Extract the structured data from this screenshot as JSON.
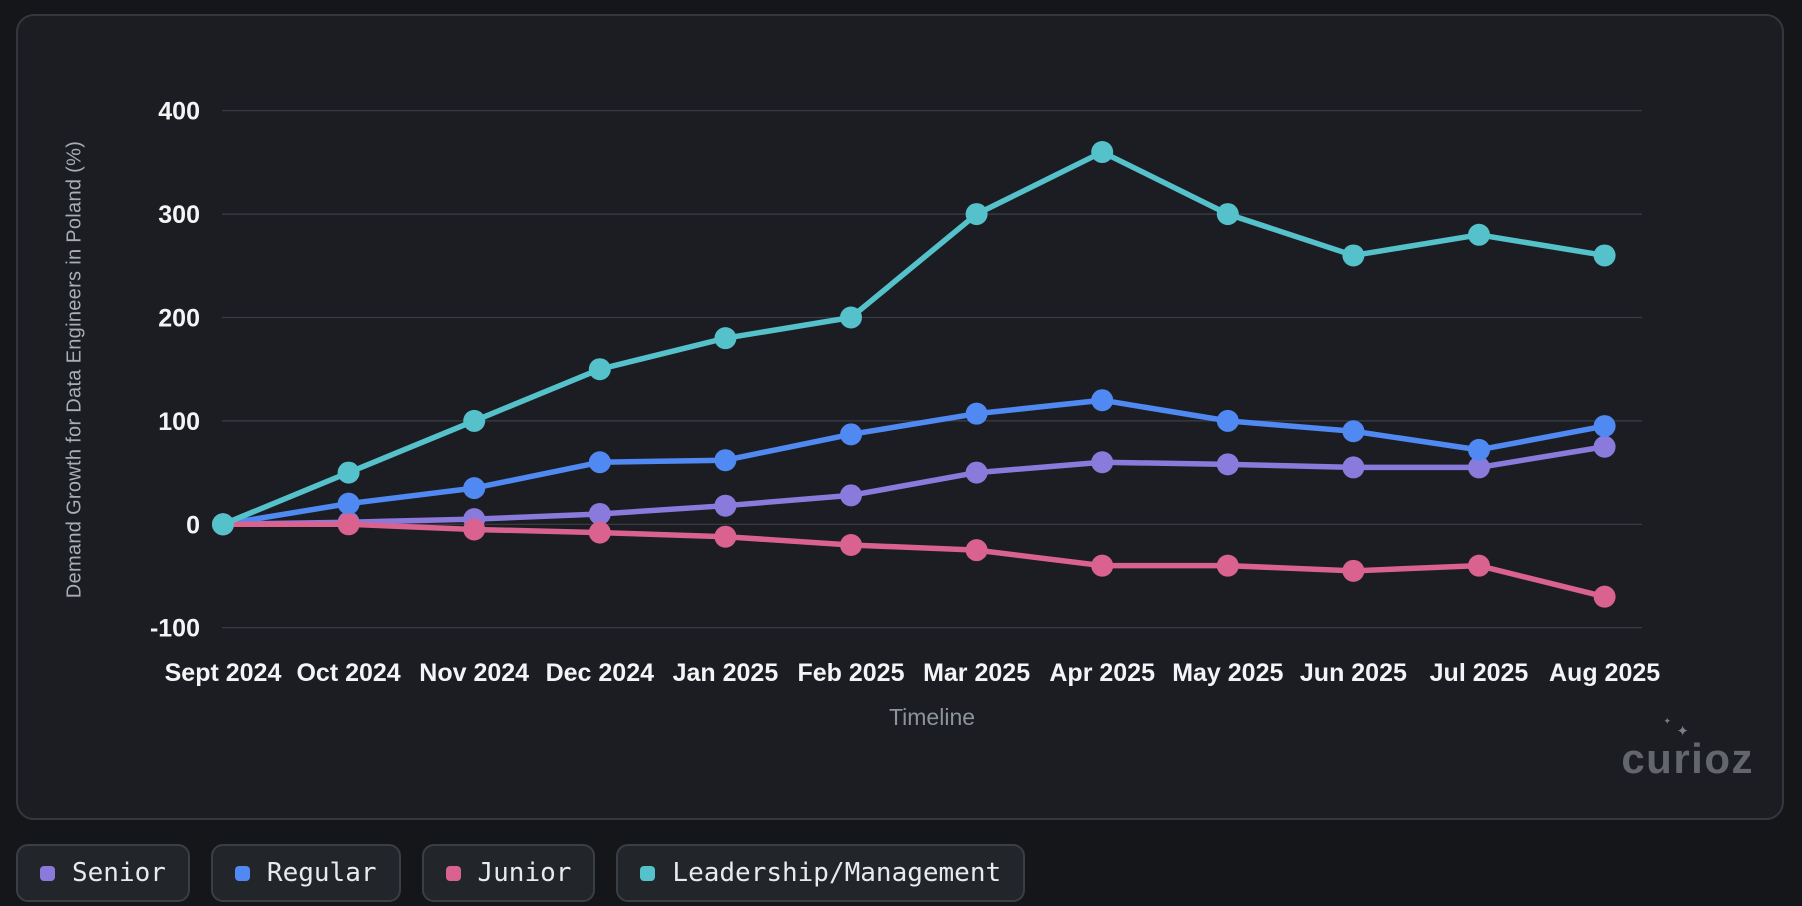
{
  "watermark": {
    "text": "curioz",
    "sparkle": "✦"
  },
  "axes": {
    "x_title": "Timeline",
    "y_title": "Demand Growth for Data Engineers in Poland (%)"
  },
  "chart_data": {
    "type": "line",
    "title": "",
    "xlabel": "Timeline",
    "ylabel": "Demand Growth for Data Engineers in Poland (%)",
    "ylim": [
      -100,
      400
    ],
    "yticks": [
      400,
      300,
      200,
      100,
      0,
      -100
    ],
    "grid": true,
    "legend_position": "bottom",
    "categories": [
      "Sept 2024",
      "Oct 2024",
      "Nov 2024",
      "Dec 2024",
      "Jan 2025",
      "Feb 2025",
      "Mar 2025",
      "Apr 2025",
      "May 2025",
      "Jun 2025",
      "Jul 2025",
      "Aug 2025"
    ],
    "series": [
      {
        "name": "Senior",
        "color": "#8a7adc",
        "values": [
          0,
          2,
          5,
          10,
          18,
          28,
          50,
          60,
          58,
          55,
          55,
          75
        ]
      },
      {
        "name": "Regular",
        "color": "#5089f2",
        "values": [
          0,
          20,
          35,
          60,
          62,
          87,
          107,
          120,
          100,
          90,
          72,
          95
        ]
      },
      {
        "name": "Junior",
        "color": "#d9628f",
        "values": [
          0,
          0,
          -5,
          -8,
          -12,
          -20,
          -25,
          -40,
          -40,
          -45,
          -40,
          -70
        ]
      },
      {
        "name": "Leadership/Management",
        "color": "#55c1cb",
        "values": [
          0,
          50,
          100,
          150,
          180,
          200,
          300,
          360,
          300,
          260,
          280,
          260
        ]
      }
    ],
    "style": {
      "grid_color": "#3b3e45",
      "tick_label_color": "#f2f4f6",
      "background": "#1b1d22"
    }
  }
}
